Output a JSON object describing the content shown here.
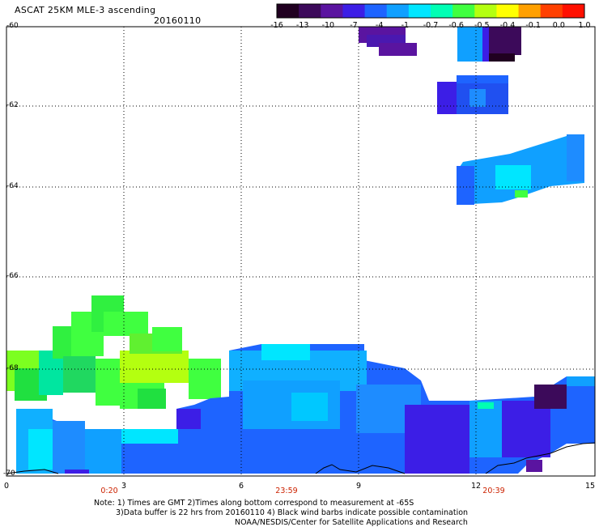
{
  "header": {
    "title": "ASCAT 25KM MLE-3 ascending",
    "date": "20160110"
  },
  "colorbar": {
    "labels": [
      "-16",
      "-13",
      "-10",
      "-7",
      "-4",
      "-1",
      "-0.7",
      "-0.6",
      "-0.5",
      "-0.4",
      "-0.1",
      "0.0",
      "1.0"
    ],
    "colors": [
      "#200020",
      "#3c0a5a",
      "#5a14a0",
      "#3c1ee6",
      "#1e64ff",
      "#10a0ff",
      "#00e6ff",
      "#00ffb4",
      "#40ff40",
      "#b4ff10",
      "#ffff00",
      "#ffa000",
      "#ff4000",
      "#ff1000"
    ]
  },
  "axes": {
    "y_ticks": [
      "-60",
      "-62",
      "-64",
      "-66",
      "-68",
      "-70"
    ],
    "x_ticks": [
      "0",
      "3",
      "6",
      "9",
      "12",
      "15"
    ],
    "time_labels": [
      "0:20",
      "23:59",
      "20:39"
    ]
  },
  "notes": {
    "line1": "Note: 1) Times are GMT 2)Times along bottom correspond to measurement at -65S",
    "line2": "3)Data buffer is 22 hrs from 20160110 4) Black wind barbs indicate possible contamination",
    "line3": "NOAA/NESDIS/Center for Satellite Applications and Research"
  }
}
